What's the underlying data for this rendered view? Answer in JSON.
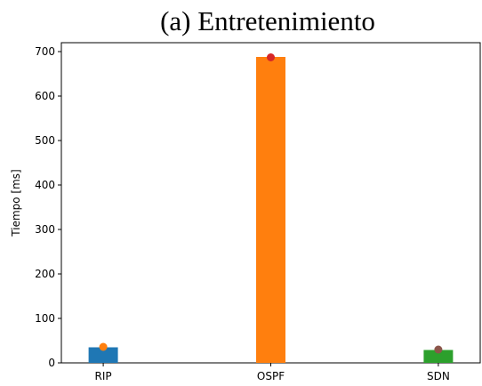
{
  "caption": "(a) Entretenimiento",
  "chart_data": {
    "type": "bar",
    "title": "",
    "xlabel": "",
    "ylabel": "Tiempo [ms]",
    "categories": [
      "RIP",
      "OSPF",
      "SDN"
    ],
    "values": [
      35,
      688,
      29
    ],
    "bar_colors": [
      "#1f77b4",
      "#ff7f0e",
      "#2ca02c"
    ],
    "markers": [
      {
        "category": "RIP",
        "value": 36,
        "color": "#ff7f0e"
      },
      {
        "category": "OSPF",
        "value": 687,
        "color": "#d62728"
      },
      {
        "category": "SDN",
        "value": 30,
        "color": "#8c564b"
      }
    ],
    "ylim": [
      0,
      720
    ],
    "yticks": [
      0,
      100,
      200,
      300,
      400,
      500,
      600,
      700
    ],
    "grid": false,
    "legend": "none"
  }
}
